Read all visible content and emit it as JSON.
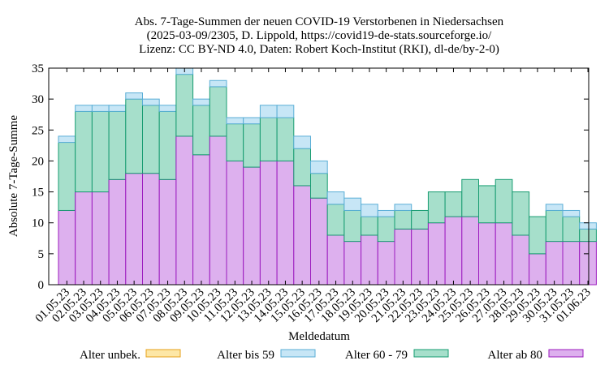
{
  "chart_data": {
    "type": "bar",
    "stacked": true,
    "title_lines": [
      "Abs. 7-Tage-Summen der neuen COVID-19 Verstorbenen in Niedersachsen",
      "(2025-03-09/2305, D. Lippold, https://covid19-de-stats.sourceforge.io/",
      "Lizenz: CC BY-ND 4.0, Daten: Robert Koch-Institut (RKI), dl-de/by-2-0)"
    ],
    "xlabel": "Meldedatum",
    "ylabel": "Absolute 7-Tage-Summe",
    "ylim": [
      0,
      35
    ],
    "yticks": [
      0,
      5,
      10,
      15,
      20,
      25,
      30,
      35
    ],
    "grid": false,
    "legend_position": "bottom",
    "categories": [
      "01.05.23",
      "02.05.23",
      "03.05.23",
      "04.05.23",
      "05.05.23",
      "06.05.23",
      "07.05.23",
      "08.05.23",
      "09.05.23",
      "10.05.23",
      "11.05.23",
      "12.05.23",
      "13.05.23",
      "14.05.23",
      "15.05.23",
      "16.05.23",
      "17.05.23",
      "18.05.23",
      "19.05.23",
      "20.05.23",
      "21.05.23",
      "22.05.23",
      "23.05.23",
      "24.05.23",
      "25.05.23",
      "26.05.23",
      "27.05.23",
      "28.05.23",
      "29.05.23",
      "30.05.23",
      "31.05.23",
      "01.06.23"
    ],
    "series": [
      {
        "name": "Alter unbek.",
        "fill": "#fde7a6",
        "stroke": "#e6a21b",
        "values": [
          0,
          0,
          0,
          0,
          0,
          0,
          0,
          0,
          0,
          0,
          0,
          0,
          0,
          0,
          0,
          0,
          0,
          0,
          0,
          0,
          0,
          0,
          0,
          0,
          0,
          0,
          0,
          0,
          0,
          0,
          0,
          0
        ]
      },
      {
        "name": "Alter bis 59",
        "fill": "#c7e6f6",
        "stroke": "#5aaed6",
        "values": [
          1,
          1,
          1,
          1,
          1,
          1,
          1,
          1,
          1,
          1,
          1,
          1,
          2,
          2,
          2,
          2,
          2,
          2,
          2,
          1,
          1,
          0,
          0,
          0,
          0,
          0,
          0,
          0,
          0,
          1,
          1,
          1
        ]
      },
      {
        "name": "Alter 60 - 79",
        "fill": "#a6dfcb",
        "stroke": "#179c71",
        "values": [
          11,
          13,
          13,
          11,
          12,
          11,
          11,
          10,
          8,
          8,
          6,
          7,
          7,
          7,
          6,
          4,
          5,
          5,
          3,
          4,
          3,
          3,
          5,
          4,
          6,
          6,
          7,
          7,
          6,
          5,
          4,
          2
        ]
      },
      {
        "name": "Alter ab 80",
        "fill": "#ddb0ee",
        "stroke": "#9c1bbf",
        "values": [
          12,
          15,
          15,
          17,
          18,
          18,
          17,
          24,
          21,
          24,
          20,
          19,
          20,
          20,
          16,
          14,
          8,
          7,
          8,
          7,
          9,
          9,
          10,
          11,
          11,
          10,
          10,
          8,
          5,
          7,
          7,
          7
        ]
      }
    ]
  }
}
